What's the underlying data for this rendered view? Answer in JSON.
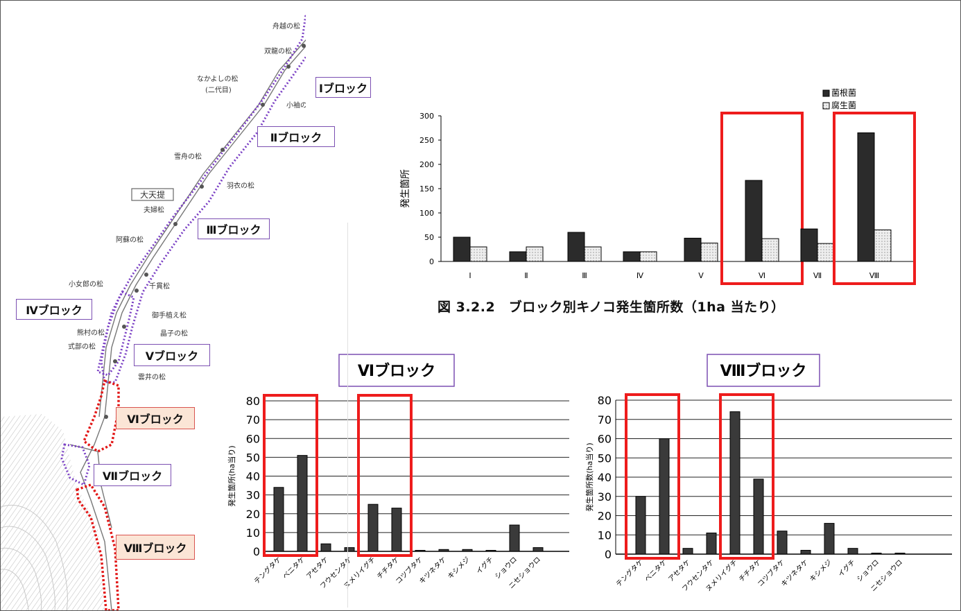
{
  "map": {
    "pines": [
      "舟越の松",
      "双龍の松",
      "なかよしの松",
      "(二代目)",
      "小袖の松",
      "雪舟の松",
      "羽衣の松",
      "夫婦松",
      "阿蘇の松",
      "小女郎の松",
      "千貫松",
      "御手植え松",
      "熊村の松",
      "晶子の松",
      "式部の松",
      "雲井の松"
    ],
    "levee_label": "大天提",
    "blocks": [
      "Ⅰブロック",
      "Ⅱブロック",
      "Ⅲブロック",
      "Ⅳブロック",
      "Ⅴブロック",
      "Ⅵブロック",
      "Ⅶブロック",
      "Ⅷブロック"
    ],
    "colors": {
      "purple_box": "#7b4fb2",
      "red_box": "#d9534f",
      "highlight_fill": "#fbe5d6",
      "purple_dot": "#7a3fc4",
      "red_dot": "#e21818"
    }
  },
  "chart_data": [
    {
      "type": "bar",
      "categories": [
        "Ⅰ",
        "Ⅱ",
        "Ⅲ",
        "Ⅳ",
        "Ⅴ",
        "Ⅵ",
        "Ⅶ",
        "Ⅷ"
      ],
      "series": [
        {
          "name": "菌根菌",
          "values": [
            50,
            20,
            60,
            20,
            48,
            167,
            67,
            265
          ]
        },
        {
          "name": "腐生菌",
          "values": [
            30,
            30,
            30,
            20,
            38,
            47,
            37,
            65
          ]
        }
      ],
      "ylabel": "発生箇所",
      "ylim": [
        0,
        300
      ],
      "yticks": [
        0,
        50,
        100,
        150,
        200,
        250,
        300
      ],
      "legend_position": "top-right",
      "caption": "図 3.2.2　ブロック別キノコ発生箇所数（1ha 当たり）",
      "highlighted": [
        "Ⅵ",
        "Ⅷ"
      ],
      "colors": {
        "dark": "#2b2b2b",
        "light": "#eeeeee",
        "highlight": "#ee1c1c"
      }
    },
    {
      "type": "bar",
      "title": "Ⅵブロック",
      "categories": [
        "テングタケ",
        "ベニタケ",
        "アセタケ",
        "フウセンタケ",
        "ヌメリイグチ",
        "チチタケ",
        "コツブタケ",
        "キツネタケ",
        "キシメジ",
        "イグチ",
        "ショウロ",
        "ニセショウロ"
      ],
      "values": [
        34,
        51,
        4,
        2,
        25,
        23,
        0.5,
        1,
        1,
        0,
        14,
        2
      ],
      "ylabel": "発生箇所(ha当り)",
      "ylim": [
        0,
        80
      ],
      "yticks": [
        0,
        10,
        20,
        30,
        40,
        50,
        60,
        70,
        80
      ],
      "highlight_groups": [
        [
          0,
          1
        ],
        [
          4,
          5
        ]
      ],
      "colors": {
        "bar": "#3a3a3a",
        "highlight": "#ee1c1c",
        "title_border": "#7b4fb2"
      }
    },
    {
      "type": "bar",
      "title": "Ⅷブロック",
      "categories": [
        "テングタケ",
        "ベニタケ",
        "アセタケ",
        "フウセンタケ",
        "ヌメリイグチ",
        "チチタケ",
        "コツブタケ",
        "キツネタケ",
        "キシメジ",
        "イグチ",
        "ショウロ",
        "ニセショウロ"
      ],
      "values": [
        30,
        60,
        3,
        11,
        74,
        39,
        12,
        2,
        16,
        3,
        0,
        0.5
      ],
      "ylabel": "発生箇所数(ha当り)",
      "ylim": [
        0,
        80
      ],
      "yticks": [
        0,
        10,
        20,
        30,
        40,
        50,
        60,
        70,
        80
      ],
      "highlight_groups": [
        [
          0,
          1
        ],
        [
          4,
          5
        ]
      ],
      "colors": {
        "bar": "#3a3a3a",
        "highlight": "#ee1c1c",
        "title_border": "#7b4fb2"
      }
    }
  ]
}
